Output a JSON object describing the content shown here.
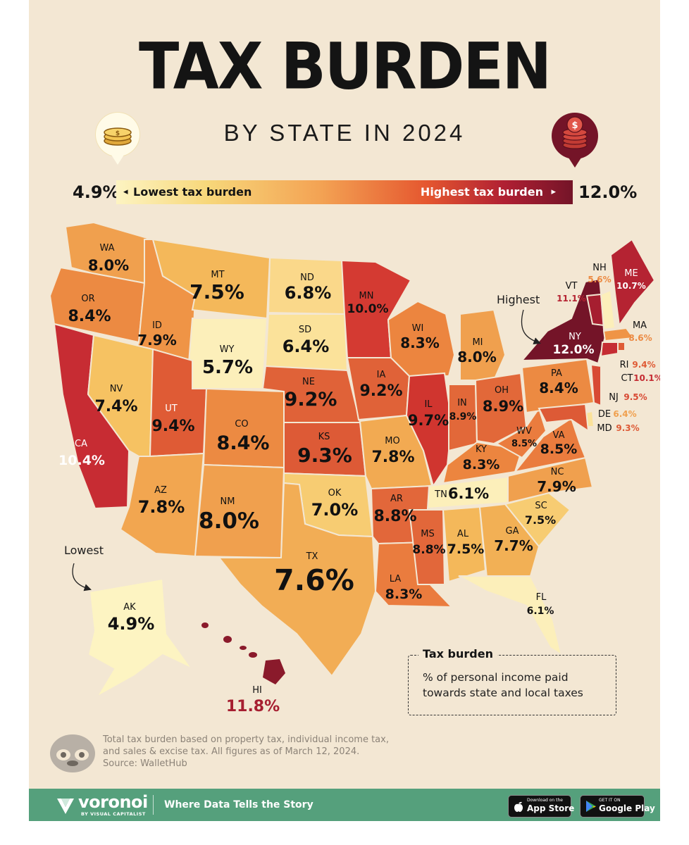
{
  "title": "TAX BURDEN",
  "subtitle": "BY STATE IN 2024",
  "legend": {
    "min_value": "4.9%",
    "max_value": "12.0%",
    "low_label": "Lowest tax burden",
    "high_label": "Highest tax burden",
    "low_arrow": "◂",
    "high_arrow": "▸"
  },
  "colors": {
    "background": "#f3e7d3",
    "lowest": "#fdf4c2",
    "highest": "#741428",
    "footer": "#55a07c"
  },
  "annotations": {
    "highest": "Highest",
    "lowest": "Lowest"
  },
  "states": [
    {
      "abbr": "WA",
      "value": "8.0%"
    },
    {
      "abbr": "OR",
      "value": "8.4%"
    },
    {
      "abbr": "CA",
      "value": "10.4%"
    },
    {
      "abbr": "ID",
      "value": "7.9%"
    },
    {
      "abbr": "NV",
      "value": "7.4%"
    },
    {
      "abbr": "MT",
      "value": "7.5%"
    },
    {
      "abbr": "WY",
      "value": "5.7%"
    },
    {
      "abbr": "UT",
      "value": "9.4%"
    },
    {
      "abbr": "AZ",
      "value": "7.8%"
    },
    {
      "abbr": "CO",
      "value": "8.4%"
    },
    {
      "abbr": "NM",
      "value": "8.0%"
    },
    {
      "abbr": "ND",
      "value": "6.8%"
    },
    {
      "abbr": "SD",
      "value": "6.4%"
    },
    {
      "abbr": "NE",
      "value": "9.2%"
    },
    {
      "abbr": "KS",
      "value": "9.3%"
    },
    {
      "abbr": "OK",
      "value": "7.0%"
    },
    {
      "abbr": "TX",
      "value": "7.6%"
    },
    {
      "abbr": "MN",
      "value": "10.0%"
    },
    {
      "abbr": "IA",
      "value": "9.2%"
    },
    {
      "abbr": "MO",
      "value": "7.8%"
    },
    {
      "abbr": "AR",
      "value": "8.8%"
    },
    {
      "abbr": "LA",
      "value": "8.3%"
    },
    {
      "abbr": "WI",
      "value": "8.3%"
    },
    {
      "abbr": "IL",
      "value": "9.7%"
    },
    {
      "abbr": "MS",
      "value": "8.8%"
    },
    {
      "abbr": "MI",
      "value": "8.0%"
    },
    {
      "abbr": "IN",
      "value": "8.9%"
    },
    {
      "abbr": "KY",
      "value": "8.3%"
    },
    {
      "abbr": "TN",
      "value": "6.1%"
    },
    {
      "abbr": "AL",
      "value": "7.5%"
    },
    {
      "abbr": "OH",
      "value": "8.9%"
    },
    {
      "abbr": "GA",
      "value": "7.7%"
    },
    {
      "abbr": "FL",
      "value": "6.1%"
    },
    {
      "abbr": "SC",
      "value": "7.5%"
    },
    {
      "abbr": "NC",
      "value": "7.9%"
    },
    {
      "abbr": "VA",
      "value": "8.5%"
    },
    {
      "abbr": "WV",
      "value": "8.5%"
    },
    {
      "abbr": "PA",
      "value": "8.4%"
    },
    {
      "abbr": "NY",
      "value": "12.0%"
    },
    {
      "abbr": "VT",
      "value": "11.1%"
    },
    {
      "abbr": "NH",
      "value": "5.6%"
    },
    {
      "abbr": "ME",
      "value": "10.7%"
    },
    {
      "abbr": "MA",
      "value": "8.6%"
    },
    {
      "abbr": "RI",
      "value": "9.4%"
    },
    {
      "abbr": "CT",
      "value": "10.1%"
    },
    {
      "abbr": "NJ",
      "value": "9.5%"
    },
    {
      "abbr": "DE",
      "value": "6.4%"
    },
    {
      "abbr": "MD",
      "value": "9.3%"
    },
    {
      "abbr": "AK",
      "value": "4.9%"
    },
    {
      "abbr": "HI",
      "value": "11.8%"
    }
  ],
  "callout": {
    "title": "Tax burden",
    "description": "% of personal income paid towards state and local taxes"
  },
  "footnote": {
    "text": "Total tax burden based on property tax, individual income tax, and sales & excise tax. All figures as of March 12, 2024.",
    "source": "Source: WalletHub"
  },
  "footer": {
    "brand": "voronoi",
    "brand_sub": "BY VISUAL CAPITALIST",
    "tagline": "Where Data Tells the Story",
    "app_store_small": "Download on the",
    "app_store_big": "App Store",
    "google_play_small": "GET IT ON",
    "google_play_big": "Google Play"
  }
}
